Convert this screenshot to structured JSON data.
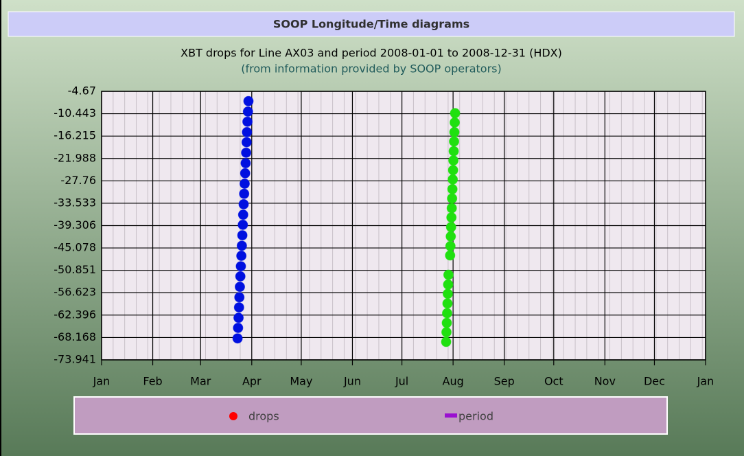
{
  "chart_data": {
    "type": "scatter",
    "title": "SOOP Longitude/Time diagrams",
    "subtitle": "XBT drops for Line AX03 and period 2008-01-01 to 2008-12-31 (HDX)",
    "note": "(from information provided by SOOP operators)",
    "xlim": [
      0,
      366
    ],
    "xticks": [
      {
        "value": 0,
        "label": "Jan"
      },
      {
        "value": 31,
        "label": "Feb"
      },
      {
        "value": 60,
        "label": "Mar"
      },
      {
        "value": 91,
        "label": "Apr"
      },
      {
        "value": 121,
        "label": "May"
      },
      {
        "value": 152,
        "label": "Jun"
      },
      {
        "value": 182,
        "label": "Jul"
      },
      {
        "value": 213,
        "label": "Aug"
      },
      {
        "value": 244,
        "label": "Sep"
      },
      {
        "value": 274,
        "label": "Oct"
      },
      {
        "value": 305,
        "label": "Nov"
      },
      {
        "value": 335,
        "label": "Dec"
      },
      {
        "value": 366,
        "label": "Jan"
      }
    ],
    "ylim": [
      -73.941,
      -4.67
    ],
    "yticks": [
      -4.67,
      -10.443,
      -16.215,
      -21.988,
      -27.76,
      -33.533,
      -39.306,
      -45.078,
      -50.851,
      -56.623,
      -62.396,
      -68.168,
      -73.941
    ],
    "grid": true,
    "series": [
      {
        "color": "#0010e0",
        "x": [
          82.4,
          82.7,
          83.0,
          83.3,
          83.5,
          83.8,
          84.1,
          84.4,
          84.7,
          85.0,
          85.3,
          85.6,
          85.8,
          86.1,
          86.4,
          86.7,
          87.0,
          87.3,
          87.6,
          87.9,
          88.1,
          88.4,
          88.7,
          89.0
        ],
        "values": [
          -68.4,
          -65.7,
          -63.1,
          -60.4,
          -57.8,
          -55.1,
          -52.4,
          -49.8,
          -47.1,
          -44.5,
          -41.8,
          -39.1,
          -36.5,
          -33.8,
          -31.1,
          -28.5,
          -25.8,
          -23.2,
          -20.5,
          -17.8,
          -15.2,
          -12.5,
          -9.9,
          -7.2
        ]
      },
      {
        "color": "#20e010",
        "x": [
          208.8,
          209.0,
          209.2,
          209.4,
          209.6,
          209.8,
          210.0,
          210.2,
          211.2,
          211.4,
          211.6,
          211.8,
          212.0,
          212.2,
          212.4,
          212.6,
          212.8,
          213.0,
          213.2,
          213.4,
          213.6,
          213.8,
          214.0,
          214.2
        ],
        "values": [
          -69.3,
          -66.8,
          -64.4,
          -61.9,
          -59.4,
          -56.9,
          -54.5,
          -52.0,
          -47.0,
          -44.6,
          -42.1,
          -39.7,
          -37.2,
          -34.8,
          -32.3,
          -29.9,
          -27.4,
          -25.0,
          -22.5,
          -20.1,
          -17.6,
          -15.2,
          -12.7,
          -10.3
        ]
      }
    ],
    "legend": [
      {
        "name": "drops",
        "color": "#ff0000"
      },
      {
        "name": "period",
        "color": "#9a10d0"
      }
    ]
  }
}
